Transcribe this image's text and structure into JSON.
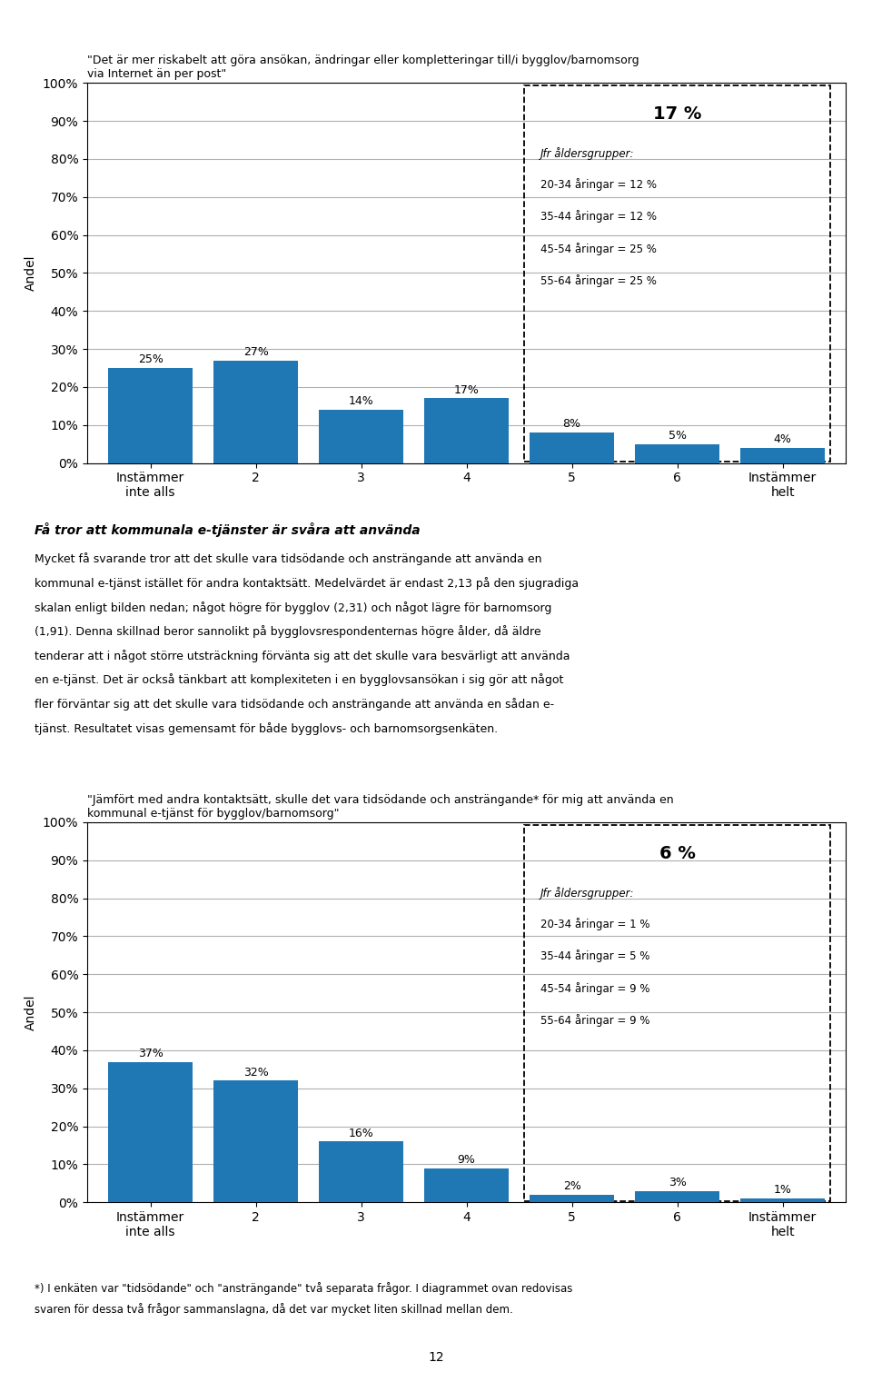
{
  "chart_data": [
    {
      "type": "bar",
      "title": "\"Det är mer riskabelt att göra ansökan, ändringar eller kompletteringar till/i bygglov/barnomsorg\nvia Internet än per post\"",
      "y_label": "Andel",
      "categories": [
        "Instämmer\ninte alls",
        "2",
        "3",
        "4",
        "5",
        "6",
        "Instämmer\nhelt"
      ],
      "values": [
        25,
        27,
        14,
        17,
        8,
        5,
        4
      ],
      "value_labels": [
        "25%",
        "27%",
        "14%",
        "17%",
        "8%",
        "5%",
        "4%"
      ],
      "data_labels": true,
      "ylim": [
        0,
        100
      ],
      "yticks": [
        {
          "value": 0,
          "label": "0%"
        },
        {
          "value": 10,
          "label": "10%"
        },
        {
          "value": 20,
          "label": "20%"
        },
        {
          "value": 30,
          "label": "30%"
        },
        {
          "value": 40,
          "label": "40%"
        },
        {
          "value": 50,
          "label": "50%"
        },
        {
          "value": 60,
          "label": "60%"
        },
        {
          "value": 70,
          "label": "70%"
        },
        {
          "value": 80,
          "label": "80%"
        },
        {
          "value": 90,
          "label": "90%"
        },
        {
          "value": 100,
          "label": "100%"
        }
      ],
      "grid": true,
      "box": {
        "categories": [
          "5",
          "6",
          "Instämmer\nhelt"
        ],
        "title": "17 %",
        "label": "Jfr åldersgrupper:",
        "lines": [
          "20-34 åringar = 12 %",
          "35-44 åringar = 12 %",
          "45-54 åringar = 25 %",
          "55-64 åringar = 25 %"
        ]
      }
    },
    {
      "type": "bar",
      "title": "\"Jämfört med andra kontaktsätt, skulle det vara tidsödande och ansträngande* för mig att använda en\nkommunal e-tjänst för bygglov/barnomsorg\"",
      "y_label": "Andel",
      "categories": [
        "Instämmer\ninte alls",
        "2",
        "3",
        "4",
        "5",
        "6",
        "Instämmer\nhelt"
      ],
      "values": [
        37,
        32,
        16,
        9,
        2,
        3,
        1
      ],
      "value_labels": [
        "37%",
        "32%",
        "16%",
        "9%",
        "2%",
        "3%",
        "1%"
      ],
      "data_labels": true,
      "ylim": [
        0,
        100
      ],
      "yticks": [
        {
          "value": 0,
          "label": "0%"
        },
        {
          "value": 10,
          "label": "10%"
        },
        {
          "value": 20,
          "label": "20%"
        },
        {
          "value": 30,
          "label": "30%"
        },
        {
          "value": 40,
          "label": "40%"
        },
        {
          "value": 50,
          "label": "50%"
        },
        {
          "value": 60,
          "label": "60%"
        },
        {
          "value": 70,
          "label": "70%"
        },
        {
          "value": 80,
          "label": "80%"
        },
        {
          "value": 90,
          "label": "90%"
        },
        {
          "value": 100,
          "label": "100%"
        }
      ],
      "grid": true,
      "box": {
        "categories": [
          "5",
          "6",
          "Instämmer\nhelt"
        ],
        "title": "6 %",
        "label": "Jfr åldersgrupper:",
        "lines": [
          "20-34 åringar = 1 %",
          "35-44 åringar = 5 %",
          "45-54 åringar = 9 %",
          "55-64 åringar = 9 %"
        ]
      }
    }
  ],
  "annotations": {
    "heading": "Få tror att kommunala e-tjänster är svåra att använda",
    "body": [
      "Mycket få svarande tror att det skulle vara tidsödande och ansträngande att använda en",
      "kommunal e-tjänst istället för andra kontaktsätt. Medelvärdet är endast 2,13 på den sjugradiga",
      "skalan enligt bilden nedan; något högre för bygglov (2,31) och något lägre för barnomsorg",
      "(1,91). Denna skillnad beror sannolikt på bygglovsrespondenternas högre ålder, då äldre",
      "tenderar att i något större utsträckning förvänta sig att det skulle vara besvärligt att använda",
      "en e-tjänst. Det är också tänkbart att komplexiteten i en bygglovsansökan i sig gör att något",
      "fler förväntar sig att det skulle vara tidsödande och ansträngande att använda en sådan e-",
      "tjänst. Resultatet visas gemensamt för både bygglovs- och barnomsorgsenkäten."
    ],
    "footnote": [
      "*) I enkäten var \"tidsödande\" och \"ansträngande\" två separata frågor. I diagrammet ovan redovisas",
      "svaren för dessa två frågor sammanslagna, då det var mycket liten skillnad mellan dem."
    ],
    "page_number": "12"
  }
}
